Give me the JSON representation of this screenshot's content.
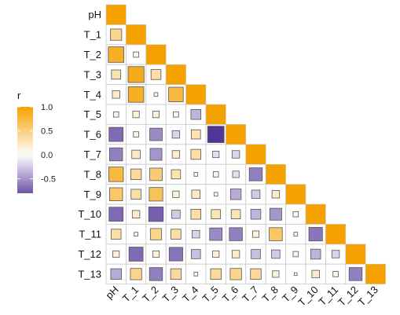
{
  "chart_data": {
    "type": "heatmap",
    "subtype": "correlation-matrix-lower-triangle",
    "variables": [
      "pH",
      "T_1",
      "T_2",
      "T_3",
      "T_4",
      "T_5",
      "T_6",
      "T_7",
      "T_8",
      "T_9",
      "T_10",
      "T_11",
      "T_12",
      "T_13"
    ],
    "matrix": [
      [
        1.0
      ],
      [
        0.45,
        1.0
      ],
      [
        0.85,
        0.1,
        1.0
      ],
      [
        0.3,
        0.9,
        0.35,
        1.0
      ],
      [
        0.2,
        0.85,
        0.05,
        0.75,
        1.0
      ],
      [
        0.1,
        0.15,
        0.15,
        0.1,
        -0.35,
        1.0
      ],
      [
        -0.7,
        0.1,
        -0.55,
        -0.2,
        0.3,
        -0.95,
        1.0
      ],
      [
        -0.6,
        0.25,
        -0.5,
        0.2,
        0.35,
        -0.15,
        -0.2,
        1.0
      ],
      [
        0.75,
        0.4,
        0.55,
        0.3,
        0.05,
        0.1,
        -0.15,
        -0.6,
        1.0
      ],
      [
        0.6,
        0.35,
        0.65,
        0.15,
        0.25,
        0.05,
        -0.4,
        -0.25,
        0.2,
        1.0
      ],
      [
        -0.7,
        0.2,
        -0.75,
        -0.25,
        0.35,
        0.3,
        0.3,
        -0.35,
        -0.5,
        0.1,
        1.0
      ],
      [
        0.35,
        0.05,
        0.45,
        0.35,
        -0.2,
        -0.55,
        -0.6,
        0.15,
        0.6,
        0.05,
        -0.65,
        1.0
      ],
      [
        0.15,
        -0.7,
        0.15,
        -0.65,
        -0.3,
        0.15,
        0.2,
        -0.3,
        -0.25,
        0.1,
        -0.35,
        -0.2,
        1.0
      ],
      [
        -0.4,
        0.45,
        -0.6,
        0.4,
        0.05,
        0.4,
        0.45,
        0.4,
        0.15,
        0.0,
        0.2,
        0.1,
        -0.6,
        1.0
      ]
    ],
    "legend": {
      "title": "r",
      "range": [
        -0.8,
        1.0
      ],
      "ticks": [
        {
          "value": 1.0,
          "label": "1.0"
        },
        {
          "value": 0.5,
          "label": "0.5"
        },
        {
          "value": 0.0,
          "label": "0.0"
        },
        {
          "value": -0.5,
          "label": "-0.5"
        }
      ],
      "placement": "left"
    },
    "colors": {
      "positive": "#F5A100",
      "neutral": "#FFFFFF",
      "negative": "#4A2A95",
      "grid": "#C8C8C8",
      "square_border": "#555555"
    }
  }
}
